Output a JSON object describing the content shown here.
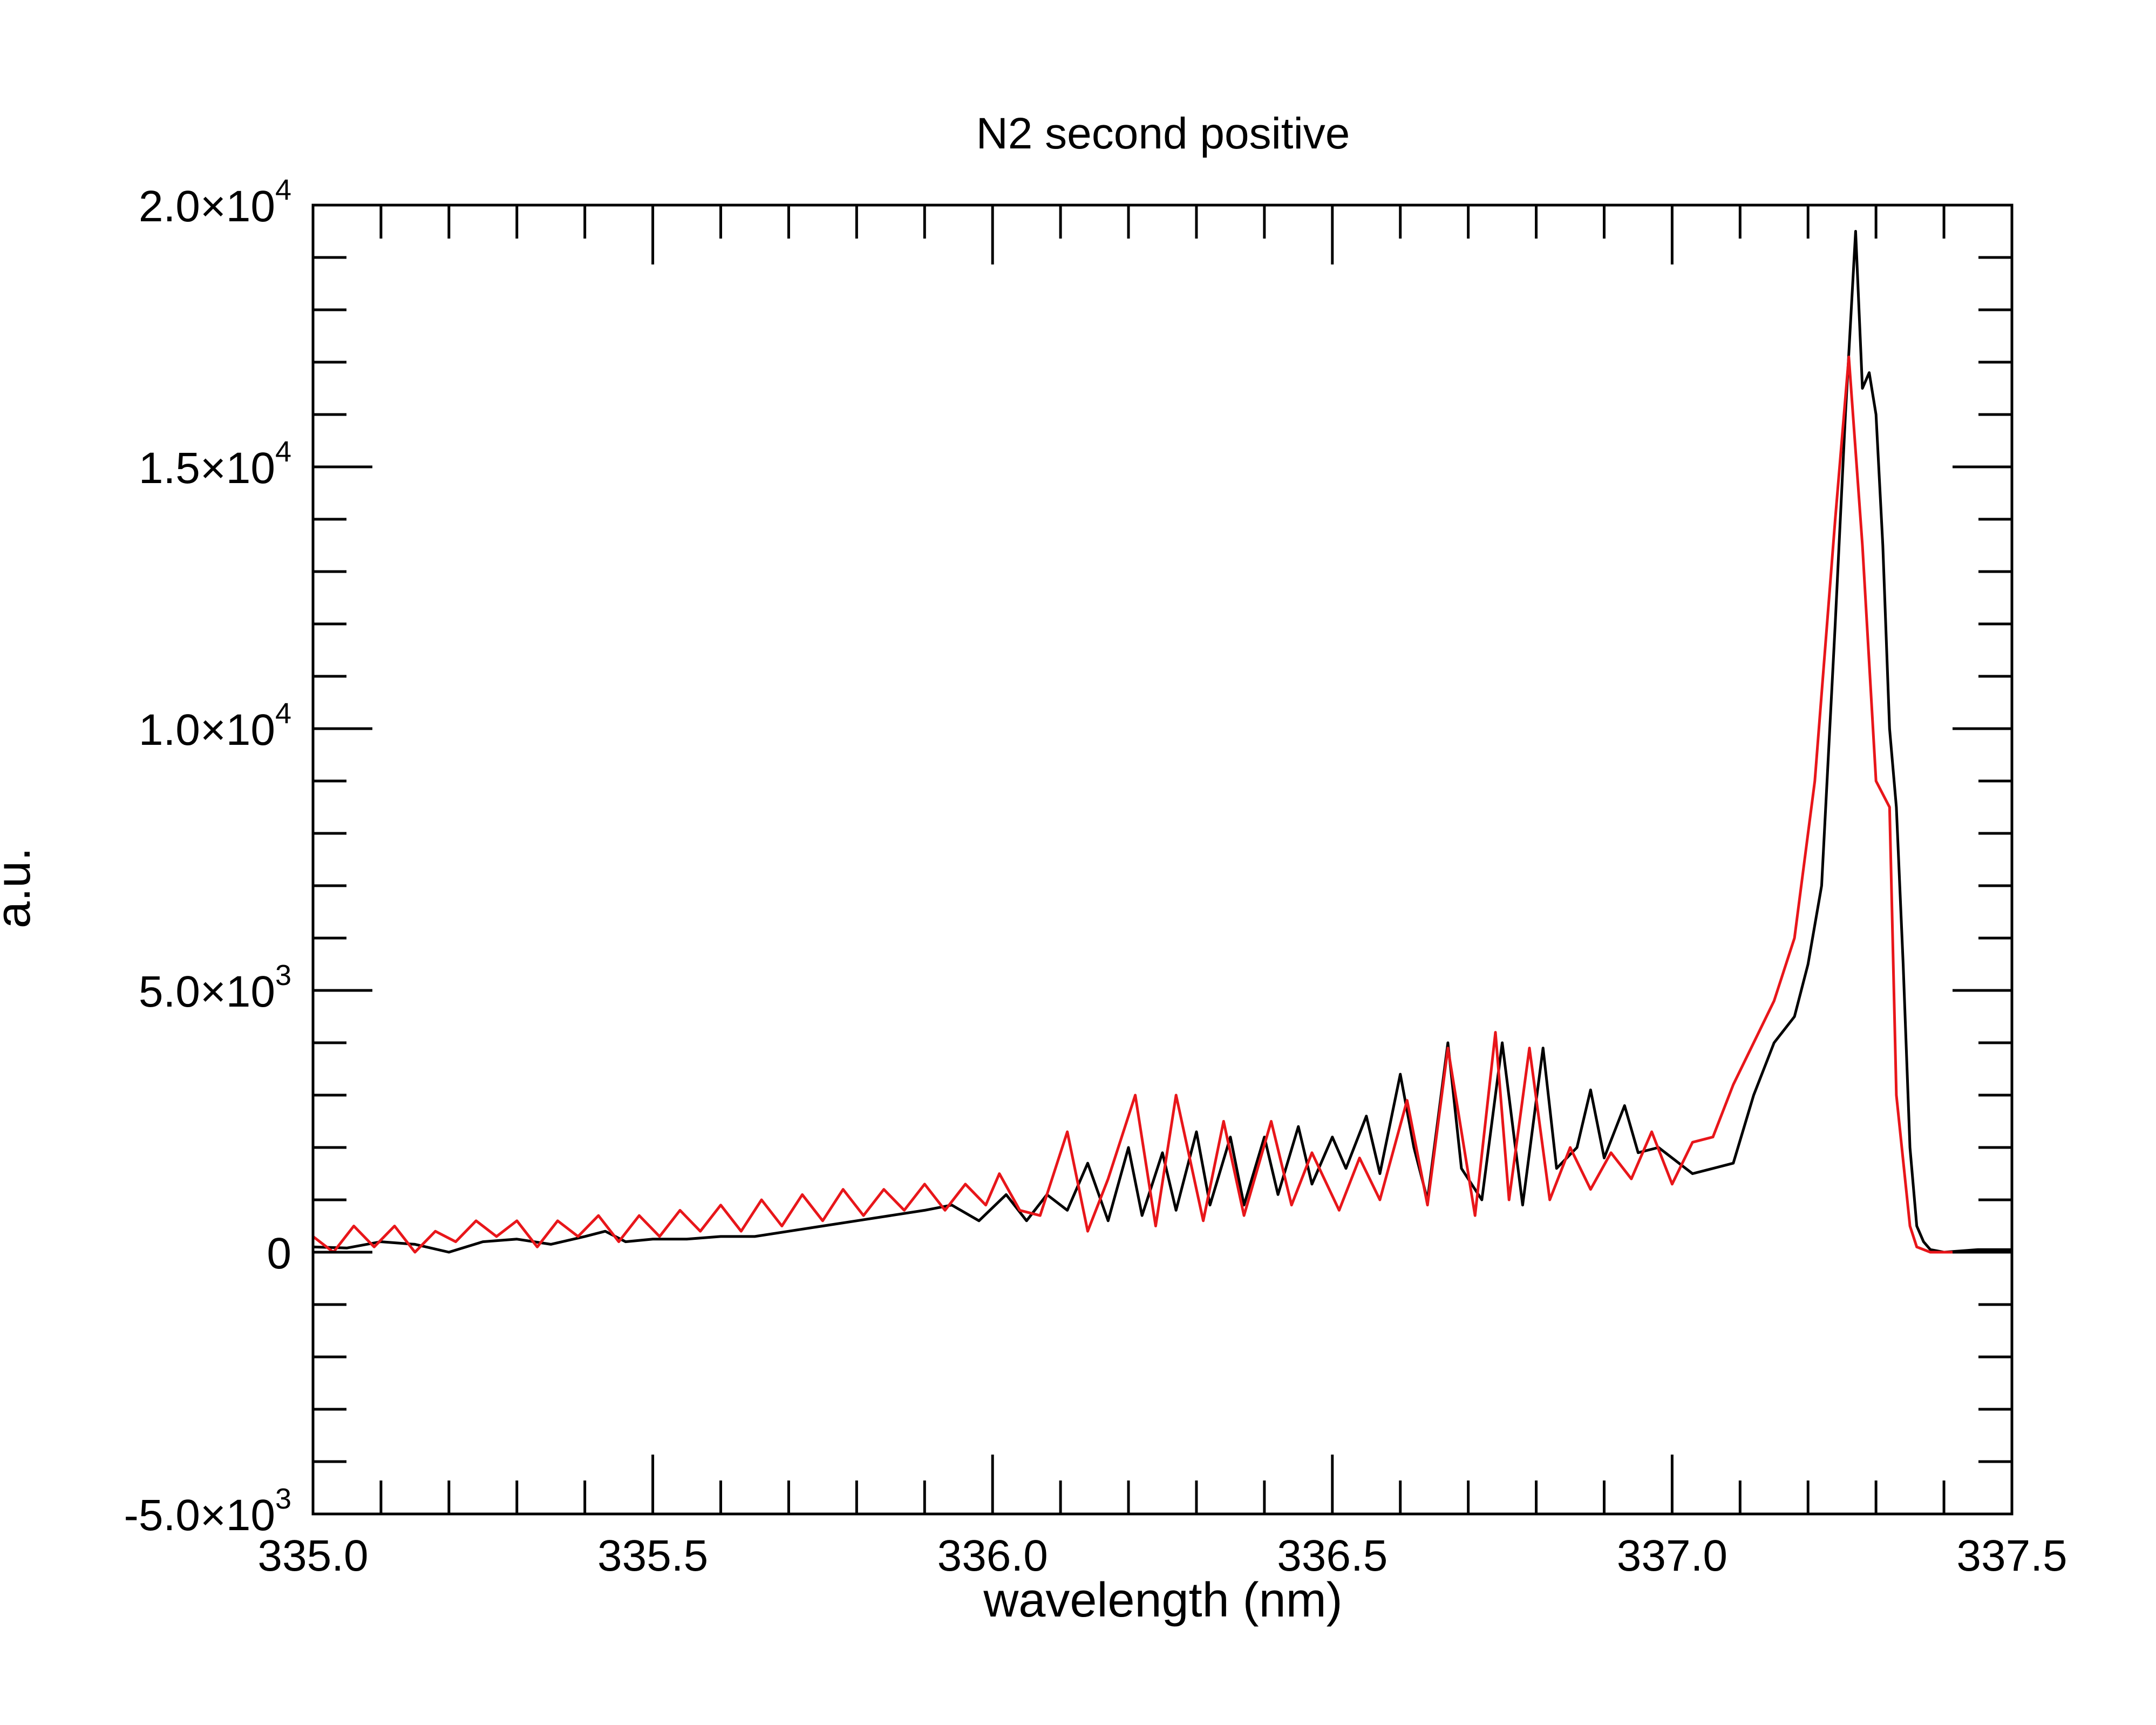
{
  "chart_data": {
    "type": "line",
    "title": "N2 second positive",
    "xlabel": "wavelength (nm)",
    "ylabel": "a.u.",
    "xlim": [
      335.0,
      337.5
    ],
    "ylim": [
      -5000,
      20000
    ],
    "grid": false,
    "legend": "none",
    "x_ticks": [
      {
        "value": 335.0,
        "label": "335.0"
      },
      {
        "value": 335.5,
        "label": "335.5"
      },
      {
        "value": 336.0,
        "label": "336.0"
      },
      {
        "value": 336.5,
        "label": "336.5"
      },
      {
        "value": 337.0,
        "label": "337.0"
      },
      {
        "value": 337.5,
        "label": "337.5"
      }
    ],
    "y_ticks": [
      {
        "value": -5000,
        "mantissa": "-5.0",
        "exponent": "3"
      },
      {
        "value": 0,
        "mantissa": "0",
        "exponent": ""
      },
      {
        "value": 5000,
        "mantissa": "5.0",
        "exponent": "3"
      },
      {
        "value": 10000,
        "mantissa": "1.0",
        "exponent": "4"
      },
      {
        "value": 15000,
        "mantissa": "1.5",
        "exponent": "4"
      },
      {
        "value": 20000,
        "mantissa": "2.0",
        "exponent": "4"
      }
    ],
    "tick_times_sign": "×10",
    "series": [
      {
        "color": "#000000",
        "x": [
          335.0,
          335.05,
          335.1,
          335.15,
          335.2,
          335.25,
          335.3,
          335.35,
          335.4,
          335.43,
          335.46,
          335.5,
          335.55,
          335.6,
          335.65,
          335.7,
          335.75,
          335.8,
          335.85,
          335.9,
          335.94,
          335.98,
          336.02,
          336.05,
          336.08,
          336.11,
          336.14,
          336.17,
          336.2,
          336.22,
          336.25,
          336.27,
          336.3,
          336.32,
          336.35,
          336.37,
          336.4,
          336.42,
          336.45,
          336.47,
          336.5,
          336.52,
          336.55,
          336.57,
          336.6,
          336.62,
          336.64,
          336.67,
          336.69,
          336.72,
          336.75,
          336.78,
          336.81,
          336.83,
          336.86,
          336.88,
          336.9,
          336.93,
          336.95,
          336.98,
          337.0,
          337.03,
          337.06,
          337.09,
          337.12,
          337.15,
          337.18,
          337.2,
          337.22,
          337.24,
          337.255,
          337.27,
          337.28,
          337.29,
          337.3,
          337.31,
          337.32,
          337.33,
          337.34,
          337.35,
          337.36,
          337.37,
          337.38,
          337.4,
          337.45,
          337.5
        ],
        "y": [
          100,
          80,
          200,
          150,
          0,
          200,
          250,
          150,
          300,
          400,
          200,
          250,
          250,
          300,
          300,
          400,
          500,
          600,
          700,
          800,
          900,
          600,
          1100,
          600,
          1100,
          800,
          1700,
          600,
          2000,
          700,
          1900,
          800,
          2300,
          900,
          2200,
          900,
          2200,
          1100,
          2400,
          1300,
          2200,
          1600,
          2600,
          1500,
          3400,
          2000,
          1000,
          4000,
          1600,
          1000,
          4000,
          900,
          3900,
          1600,
          2000,
          3100,
          1800,
          2800,
          1900,
          2000,
          1800,
          1500,
          1600,
          1700,
          3000,
          4000,
          4500,
          5500,
          7000,
          12000,
          16000,
          19500,
          16500,
          16800,
          16000,
          13500,
          10000,
          8500,
          5500,
          2000,
          500,
          200,
          50,
          0,
          50,
          50
        ]
      },
      {
        "color": "#e8161a",
        "x": [
          335.0,
          335.03,
          335.06,
          335.09,
          335.12,
          335.15,
          335.18,
          335.21,
          335.24,
          335.27,
          335.3,
          335.33,
          335.36,
          335.39,
          335.42,
          335.45,
          335.48,
          335.51,
          335.54,
          335.57,
          335.6,
          335.63,
          335.66,
          335.69,
          335.72,
          335.75,
          335.78,
          335.81,
          335.84,
          335.87,
          335.9,
          335.93,
          335.96,
          335.99,
          336.01,
          336.04,
          336.07,
          336.11,
          336.14,
          336.17,
          336.21,
          336.24,
          336.27,
          336.31,
          336.34,
          336.37,
          336.41,
          336.44,
          336.47,
          336.51,
          336.54,
          336.57,
          336.61,
          336.64,
          336.67,
          336.71,
          336.74,
          336.76,
          336.79,
          336.82,
          336.85,
          336.88,
          336.91,
          336.94,
          336.97,
          337.0,
          337.03,
          337.06,
          337.09,
          337.12,
          337.15,
          337.18,
          337.21,
          337.24,
          337.26,
          337.28,
          337.3,
          337.32,
          337.33,
          337.35,
          337.36,
          337.38,
          337.4,
          337.45,
          337.5
        ],
        "y": [
          300,
          0,
          500,
          100,
          500,
          0,
          400,
          200,
          600,
          300,
          600,
          100,
          600,
          300,
          700,
          200,
          700,
          300,
          800,
          400,
          900,
          400,
          1000,
          500,
          1100,
          600,
          1200,
          700,
          1200,
          800,
          1300,
          800,
          1300,
          900,
          1500,
          800,
          700,
          2300,
          400,
          1400,
          3000,
          500,
          3000,
          600,
          2500,
          700,
          2500,
          900,
          1900,
          800,
          1800,
          1000,
          2900,
          900,
          3900,
          700,
          4200,
          1000,
          3900,
          1000,
          2000,
          1200,
          1900,
          1400,
          2300,
          1300,
          2100,
          2200,
          3200,
          4000,
          4800,
          6000,
          9000,
          14000,
          17100,
          13500,
          9000,
          8500,
          3000,
          500,
          100,
          0,
          0,
          0,
          0
        ]
      }
    ]
  }
}
